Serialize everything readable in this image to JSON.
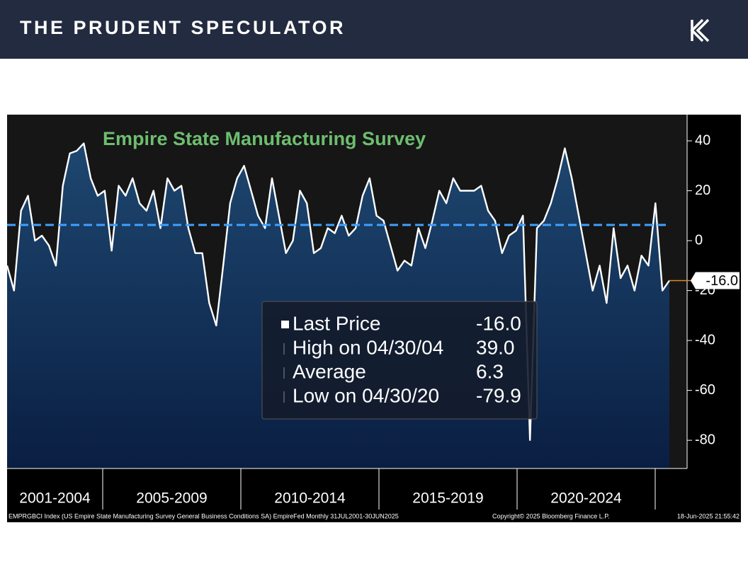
{
  "header": {
    "title": "THE PRUDENT SPECULATOR"
  },
  "chart_data": {
    "type": "area-line",
    "title": "Empire State Manufacturing Survey",
    "periods": [
      "2001-2004",
      "2005-2009",
      "2010-2014",
      "2015-2019",
      "2020-2024"
    ],
    "series": [
      {
        "name": "EMPRGBCI Index",
        "color": "#ffffff",
        "values": [
          -10,
          -20,
          12,
          18,
          0,
          2,
          -2,
          -10,
          22,
          35,
          36,
          39,
          25,
          18,
          20,
          -4,
          22,
          18,
          25,
          15,
          12,
          20,
          5,
          25,
          20,
          22,
          5,
          -5,
          -5,
          -25,
          -34,
          -10,
          15,
          25,
          30,
          20,
          10,
          5,
          25,
          10,
          -5,
          0,
          20,
          15,
          -5,
          -3,
          5,
          3,
          10,
          2,
          5,
          18,
          25,
          10,
          8,
          -2,
          -12,
          -8,
          -10,
          5,
          -3,
          8,
          20,
          15,
          25,
          20,
          20,
          20,
          22,
          12,
          8,
          -5,
          2,
          4,
          10,
          -79.9,
          5,
          8,
          15,
          25,
          37,
          25,
          10,
          -5,
          -20,
          -10,
          -25,
          5,
          -15,
          -10,
          -20,
          -6,
          -10,
          15,
          -20,
          -16
        ]
      }
    ],
    "average": {
      "name": "Average",
      "value": 6.3,
      "color": "#3fa0ff"
    },
    "last_price": {
      "value": -16,
      "label": "-16.0",
      "color": "#e08a1e"
    },
    "stats": [
      {
        "label": "Last Price",
        "value": -16,
        "value_label": "-16.0"
      },
      {
        "label": "High on 04/30/04",
        "value": 39,
        "value_label": "39.0"
      },
      {
        "label": "Average",
        "value": 6.3,
        "value_label": "6.3"
      },
      {
        "label": "Low on 04/30/20",
        "value": -79.9,
        "value_label": "-79.9"
      }
    ],
    "ylim": [
      -91.3,
      50.5
    ],
    "yticks": [
      40,
      20,
      0,
      -20,
      -40,
      -60,
      -80
    ],
    "footer": {
      "source": "EMPRGBCI Index (US Empire State Manufacturing Survey General Business Conditions SA) EmpireFed  Monthly 31JUL2001-30JUN2025",
      "copyright": "Copyright© 2025 Bloomberg Finance L.P.",
      "timestamp": "18-Jun-2025 21:55:42"
    }
  }
}
